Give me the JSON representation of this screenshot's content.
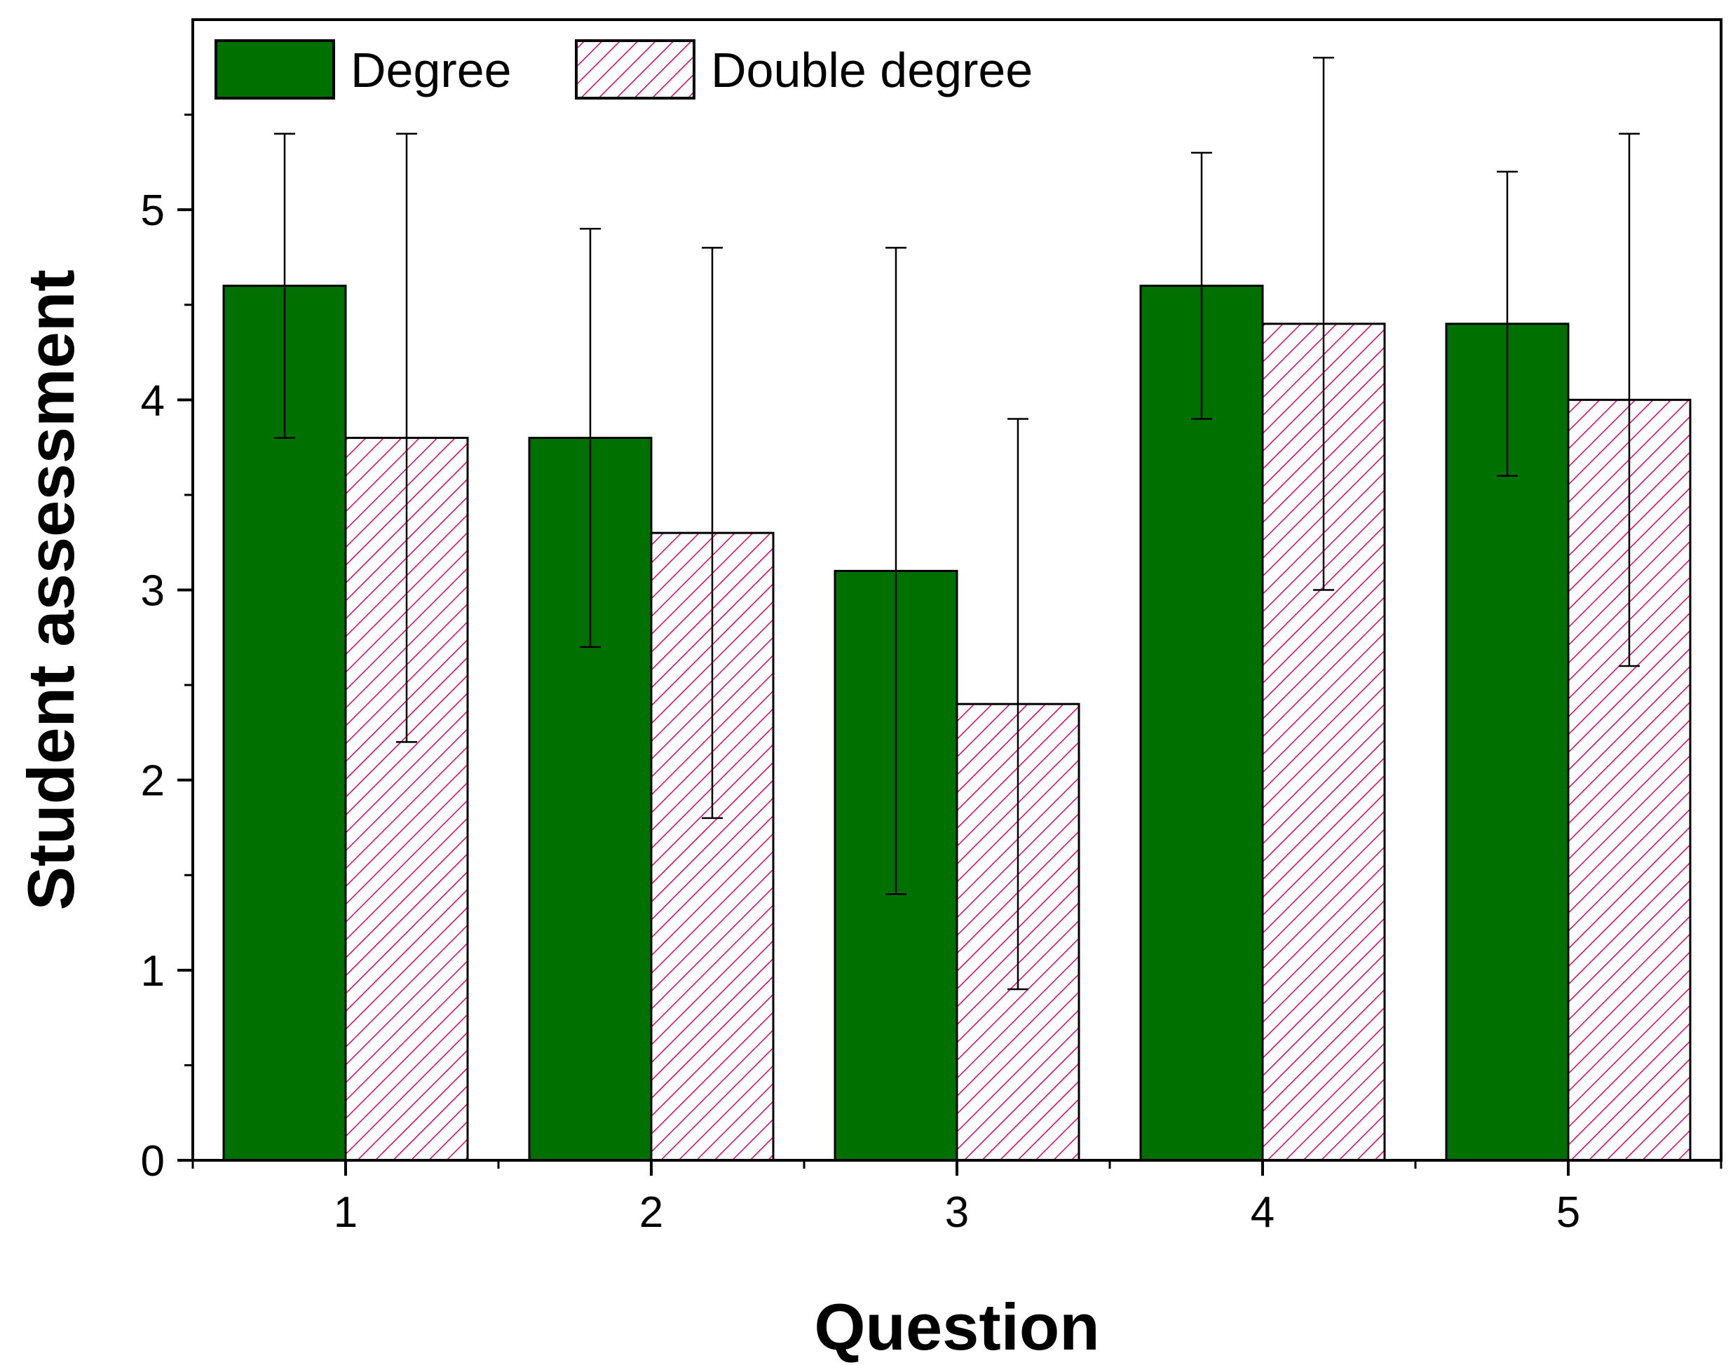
{
  "chart_data": {
    "type": "bar",
    "xlabel": "Question",
    "ylabel": "Student assessment",
    "categories": [
      "1",
      "2",
      "3",
      "4",
      "5"
    ],
    "yticks": [
      "0",
      "1",
      "2",
      "3",
      "4",
      "5"
    ],
    "ylim": [
      0,
      6
    ],
    "grid": false,
    "legend_position": "top-left",
    "series": [
      {
        "name": "Degree",
        "color": "#007000",
        "pattern": "solid",
        "values": [
          4.6,
          3.8,
          3.1,
          4.6,
          4.4
        ],
        "error_low": [
          3.8,
          2.7,
          1.4,
          3.9,
          3.6
        ],
        "error_high": [
          5.4,
          4.9,
          4.8,
          5.3,
          5.2
        ]
      },
      {
        "name": "Double degree",
        "color": "#e0006a",
        "pattern": "diagonal-hatch",
        "values": [
          3.8,
          3.3,
          2.4,
          4.4,
          4.0
        ],
        "error_low": [
          2.2,
          1.8,
          0.9,
          3.0,
          2.6
        ],
        "error_high": [
          5.4,
          4.8,
          3.9,
          5.8,
          5.4
        ]
      }
    ]
  }
}
